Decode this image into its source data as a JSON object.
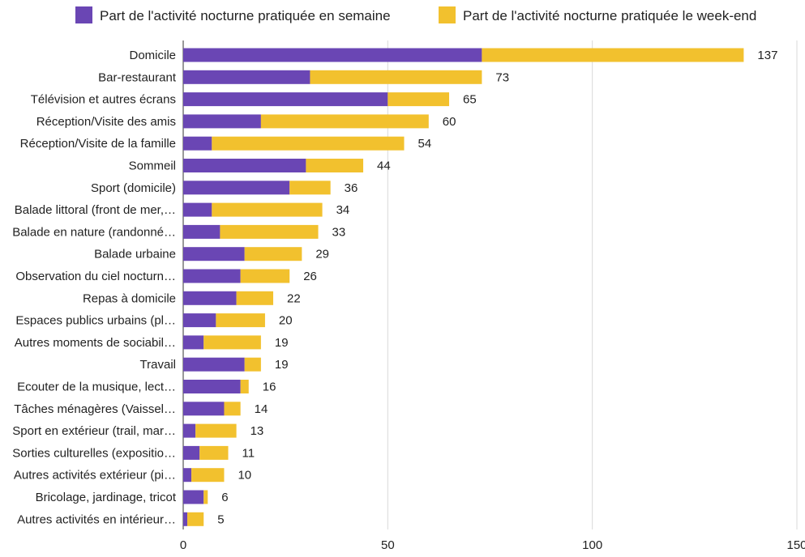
{
  "chart_data": {
    "type": "bar",
    "orientation": "horizontal",
    "stacked": true,
    "xlim": [
      0,
      150
    ],
    "xticks": [
      0,
      50,
      100,
      150
    ],
    "grid": true,
    "legend_position": "top",
    "categories": [
      "Domicile",
      "Bar-restaurant",
      "Télévision et autres écrans",
      "Réception/Visite des amis",
      "Réception/Visite de la famille",
      "Sommeil",
      "Sport (domicile)",
      "Balade littoral (front de mer,…",
      "Balade en nature (randonné…",
      "Balade urbaine",
      "Observation du ciel nocturn…",
      "Repas à domicile",
      "Espaces publics urbains (pl…",
      "Autres moments de sociabil…",
      "Travail",
      "Ecouter de la musique, lect…",
      "Tâches ménagères (Vaissel…",
      "Sport en extérieur (trail, mar…",
      "Sorties culturelles (expositio…",
      "Autres activités extérieur (pi…",
      "Bricolage, jardinage, tricot",
      "Autres activités en intérieur…"
    ],
    "series": [
      {
        "name": "Part de l'activité nocturne pratiquée en semaine",
        "color": "#6a46b4",
        "values": [
          73,
          31,
          50,
          19,
          7,
          30,
          26,
          7,
          9,
          15,
          14,
          13,
          8,
          5,
          15,
          14,
          10,
          3,
          4,
          2,
          5,
          1
        ]
      },
      {
        "name": "Part de l'activité nocturne pratiquée le week-end",
        "color": "#f2c12e",
        "values": [
          64,
          42,
          15,
          41,
          47,
          14,
          10,
          27,
          24,
          14,
          12,
          9,
          12,
          14,
          4,
          2,
          4,
          10,
          7,
          8,
          1,
          4
        ]
      }
    ],
    "totals": [
      137,
      73,
      65,
      60,
      54,
      44,
      36,
      34,
      33,
      29,
      26,
      22,
      20,
      19,
      19,
      16,
      14,
      13,
      11,
      10,
      6,
      5
    ]
  }
}
